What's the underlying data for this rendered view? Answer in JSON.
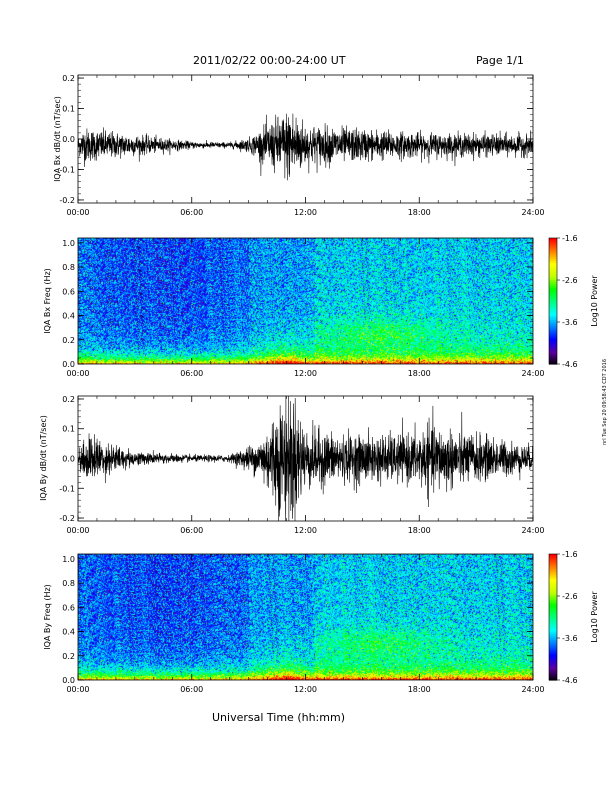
{
  "header": {
    "title": "2011/02/22  00:00-24:00 UT",
    "page": "Page 1/1"
  },
  "x_axis": {
    "label": "Universal Time (hh:mm)",
    "ticks": [
      "00:00",
      "06:00",
      "12:00",
      "18:00",
      "24:00"
    ],
    "range_hours": [
      0,
      24
    ]
  },
  "credit": "nrl Tue Sep 20 09:58:43 CDT 2016",
  "colorbar": {
    "label": "Log10 Power",
    "ticks": [
      "-1.6",
      "-2.6",
      "-3.6",
      "-4.6"
    ],
    "range": [
      -4.6,
      -1.6
    ],
    "colors": [
      "#000000",
      "#5a00a0",
      "#0000ff",
      "#0080ff",
      "#00ffff",
      "#00ff80",
      "#00ff00",
      "#c0ff00",
      "#ffff00",
      "#ff8000",
      "#ff0000"
    ]
  },
  "chart_data": [
    {
      "type": "line",
      "name": "bx-timeseries",
      "ylabel": "IQA Bx dB/dt (nT/sec)",
      "yticks": [
        "0.2",
        "0.1",
        "0.0",
        "-0.1",
        "-0.2"
      ],
      "ylim": [
        -0.21,
        0.21
      ],
      "baseline": -0.02,
      "amplitude_envelope": [
        {
          "t": 0.0,
          "a": 0.025
        },
        {
          "t": 0.3,
          "a": 0.05
        },
        {
          "t": 3.0,
          "a": 0.03
        },
        {
          "t": 6.0,
          "a": 0.01
        },
        {
          "t": 8.0,
          "a": 0.008
        },
        {
          "t": 9.0,
          "a": 0.02
        },
        {
          "t": 10.5,
          "a": 0.08
        },
        {
          "t": 11.3,
          "a": 0.11
        },
        {
          "t": 12.0,
          "a": 0.06
        },
        {
          "t": 14.0,
          "a": 0.05
        },
        {
          "t": 18.0,
          "a": 0.035
        },
        {
          "t": 24.0,
          "a": 0.03
        }
      ]
    },
    {
      "type": "heatmap",
      "name": "bx-spectrogram",
      "ylabel": "IQA Bx Freq (Hz)",
      "yticks": [
        "1.0",
        "0.8",
        "0.6",
        "0.4",
        "0.2",
        "0.0"
      ],
      "ylim": [
        0,
        1.04
      ],
      "zlim": [
        -4.6,
        -1.6
      ]
    },
    {
      "type": "line",
      "name": "by-timeseries",
      "ylabel": "IQA By dB/dt (nT/sec)",
      "yticks": [
        "0.2",
        "0.1",
        "0.0",
        "-0.1",
        "-0.2"
      ],
      "ylim": [
        -0.21,
        0.21
      ],
      "baseline": 0.0,
      "amplitude_envelope": [
        {
          "t": 0.0,
          "a": 0.03
        },
        {
          "t": 0.5,
          "a": 0.07
        },
        {
          "t": 3.0,
          "a": 0.02
        },
        {
          "t": 6.0,
          "a": 0.01
        },
        {
          "t": 8.0,
          "a": 0.01
        },
        {
          "t": 9.5,
          "a": 0.05
        },
        {
          "t": 10.7,
          "a": 0.17
        },
        {
          "t": 11.3,
          "a": 0.2
        },
        {
          "t": 12.0,
          "a": 0.09
        },
        {
          "t": 14.0,
          "a": 0.07
        },
        {
          "t": 17.5,
          "a": 0.07
        },
        {
          "t": 18.5,
          "a": 0.1
        },
        {
          "t": 24.0,
          "a": 0.035
        }
      ]
    },
    {
      "type": "heatmap",
      "name": "by-spectrogram",
      "ylabel": "IQA By Freq (Hz)",
      "yticks": [
        "1.0",
        "0.8",
        "0.6",
        "0.4",
        "0.2",
        "0.0"
      ],
      "ylim": [
        0,
        1.04
      ],
      "zlim": [
        -4.6,
        -1.6
      ]
    }
  ]
}
